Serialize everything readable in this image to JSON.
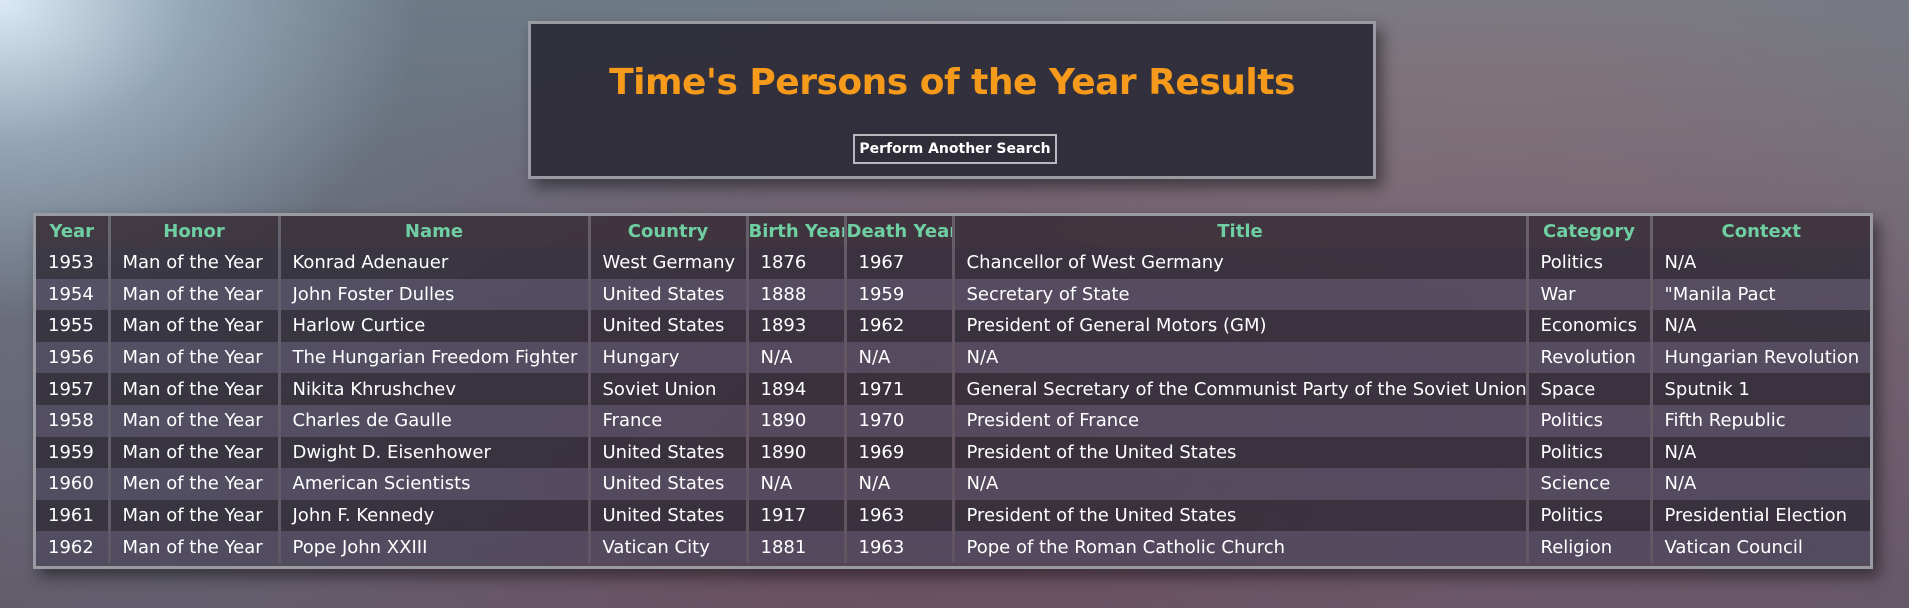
{
  "header": {
    "title": "Time's Persons of the Year Results",
    "search_button_label": "Perform Another Search"
  },
  "table": {
    "columns": [
      "Year",
      "Honor",
      "Name",
      "Country",
      "Birth Year",
      "Death Year",
      "Title",
      "Category",
      "Context"
    ],
    "rows": [
      [
        "1953",
        "Man of the Year",
        "Konrad Adenauer",
        "West Germany",
        "1876",
        "1967",
        "Chancellor of West Germany",
        "Politics",
        "N/A"
      ],
      [
        "1954",
        "Man of the Year",
        "John Foster Dulles",
        "United States",
        "1888",
        "1959",
        "Secretary of State",
        "War",
        "\"Manila Pact"
      ],
      [
        "1955",
        "Man of the Year",
        "Harlow Curtice",
        "United States",
        "1893",
        "1962",
        "President of General Motors (GM)",
        "Economics",
        "N/A"
      ],
      [
        "1956",
        "Man of the Year",
        "The Hungarian Freedom Fighter",
        "Hungary",
        "N/A",
        "N/A",
        "N/A",
        "Revolution",
        "Hungarian Revolution"
      ],
      [
        "1957",
        "Man of the Year",
        "Nikita Khrushchev",
        "Soviet Union",
        "1894",
        "1971",
        "General Secretary of the Communist Party of the Soviet Union",
        "Space",
        "Sputnik 1"
      ],
      [
        "1958",
        "Man of the Year",
        "Charles de Gaulle",
        "France",
        "1890",
        "1970",
        "President of France",
        "Politics",
        "Fifth Republic"
      ],
      [
        "1959",
        "Man of the Year",
        "Dwight D. Eisenhower",
        "United States",
        "1890",
        "1969",
        "President of the United States",
        "Politics",
        "N/A"
      ],
      [
        "1960",
        "Men of the Year",
        "American Scientists",
        "United States",
        "N/A",
        "N/A",
        "N/A",
        "Science",
        "N/A"
      ],
      [
        "1961",
        "Man of the Year",
        "John F. Kennedy",
        "United States",
        "1917",
        "1963",
        "President of the United States",
        "Politics",
        "Presidential Election"
      ],
      [
        "1962",
        "Man of the Year",
        "Pope John XXIII",
        "Vatican City",
        "1881",
        "1963",
        "Pope of the Roman Catholic Church",
        "Religion",
        "Vatican Council"
      ]
    ]
  },
  "colors": {
    "title": "#f59a1a",
    "column_header": "#6fcfa2",
    "cell_text": "#ffffff"
  }
}
